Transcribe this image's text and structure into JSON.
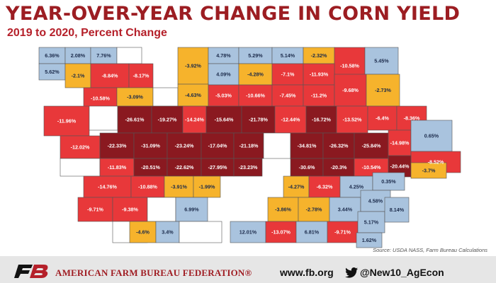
{
  "header": {
    "title": "YEAR-OVER-YEAR CHANGE IN CORN YIELD",
    "subtitle": "2019 to 2020, Percent Change"
  },
  "source": "Source: USDA NASS, Farm Bureau Calculations",
  "footer": {
    "org_name": "AMERICAN FARM BUREAU FEDERATION®",
    "website": "www.fb.org",
    "twitter_handle": "@New10_AgEcon",
    "logo_icon": "fb-logo-icon",
    "twitter_icon": "twitter-bird-icon"
  },
  "legend_colors": {
    "increase": "#a9c3de",
    "decline_0_to_5": "#f6b32c",
    "decline_5_to_15": "#e8383a",
    "decline_over_15": "#8a1920",
    "no_data": "#ffffff"
  },
  "chart_data": {
    "type": "choropleth",
    "unit": "percent change",
    "counties": [
      {
        "label": "6.36%",
        "value": 6.36
      },
      {
        "label": "2.08%",
        "value": 2.08
      },
      {
        "label": "7.76%",
        "value": 7.76
      },
      {
        "label": "",
        "value": null
      },
      {
        "label": "-3.92%",
        "value": -3.92
      },
      {
        "label": "4.78%",
        "value": 4.78
      },
      {
        "label": "5.29%",
        "value": 5.29
      },
      {
        "label": "5.14%",
        "value": 5.14
      },
      {
        "label": "-2.32%",
        "value": -2.32
      },
      {
        "label": "-10.58%",
        "value": -10.58
      },
      {
        "label": "5.45%",
        "value": 5.45
      },
      {
        "label": "5.62%",
        "value": 5.62
      },
      {
        "label": "-2.1%",
        "value": -2.1
      },
      {
        "label": "-8.84%",
        "value": -8.84
      },
      {
        "label": "-8.17%",
        "value": -8.17
      },
      {
        "label": "4.09%",
        "value": 4.09
      },
      {
        "label": "-4.28%",
        "value": -4.28
      },
      {
        "label": "-7.1%",
        "value": -7.1
      },
      {
        "label": "-11.93%",
        "value": -11.93
      },
      {
        "label": "-10.58%",
        "value": -10.58
      },
      {
        "label": "-3.09%",
        "value": -3.09
      },
      {
        "label": "",
        "value": null
      },
      {
        "label": "-4.63%",
        "value": -4.63
      },
      {
        "label": "-5.03%",
        "value": -5.03
      },
      {
        "label": "-10.66%",
        "value": -10.66
      },
      {
        "label": "-7.45%",
        "value": -7.45
      },
      {
        "label": "-11.2%",
        "value": -11.2
      },
      {
        "label": "-9.68%",
        "value": -9.68
      },
      {
        "label": "-2.73%",
        "value": -2.73
      },
      {
        "label": "-11.96%",
        "value": -11.96
      },
      {
        "label": "",
        "value": null
      },
      {
        "label": "-26.61%",
        "value": -26.61
      },
      {
        "label": "-19.27%",
        "value": -19.27
      },
      {
        "label": "-14.24%",
        "value": -14.24
      },
      {
        "label": "-15.64%",
        "value": -15.64
      },
      {
        "label": "-21.78%",
        "value": -21.78
      },
      {
        "label": "-12.44%",
        "value": -12.44
      },
      {
        "label": "-16.72%",
        "value": -16.72
      },
      {
        "label": "-13.52%",
        "value": -13.52
      },
      {
        "label": "-6.4%",
        "value": -6.4
      },
      {
        "label": "-8.36%",
        "value": -8.36
      },
      {
        "label": "-12.02%",
        "value": -12.02
      },
      {
        "label": "-22.33%",
        "value": -22.33
      },
      {
        "label": "-31.09%",
        "value": -31.09
      },
      {
        "label": "-23.24%",
        "value": -23.24
      },
      {
        "label": "-17.04%",
        "value": -17.04
      },
      {
        "label": "-21.18%",
        "value": -21.18
      },
      {
        "label": "",
        "value": null
      },
      {
        "label": "-34.81%",
        "value": -34.81
      },
      {
        "label": "-26.32%",
        "value": -26.32
      },
      {
        "label": "-25.84%",
        "value": -25.84
      },
      {
        "label": "-14.98%",
        "value": -14.98
      },
      {
        "label": "0.65%",
        "value": 0.65
      },
      {
        "label": "-8.52%",
        "value": -8.52
      },
      {
        "label": "",
        "value": null
      },
      {
        "label": "-11.83%",
        "value": -11.83
      },
      {
        "label": "-20.51%",
        "value": -20.51
      },
      {
        "label": "-22.62%",
        "value": -22.62
      },
      {
        "label": "-27.95%",
        "value": -27.95
      },
      {
        "label": "-23.23%",
        "value": -23.23
      },
      {
        "label": "-30.6%",
        "value": -30.6
      },
      {
        "label": "-20.3%",
        "value": -20.3
      },
      {
        "label": "-10.54%",
        "value": -10.54
      },
      {
        "label": "-20.44%",
        "value": -20.44
      },
      {
        "label": "-3.7%",
        "value": -3.7
      },
      {
        "label": "-14.76%",
        "value": -14.76
      },
      {
        "label": "-10.88%",
        "value": -10.88
      },
      {
        "label": "-3.91%",
        "value": -3.91
      },
      {
        "label": "-1.99%",
        "value": -1.99
      },
      {
        "label": "-4.27%",
        "value": -4.27
      },
      {
        "label": "-6.32%",
        "value": -6.32
      },
      {
        "label": "4.25%",
        "value": 4.25
      },
      {
        "label": "0.35%",
        "value": 0.35
      },
      {
        "label": "-9.71%",
        "value": -9.71
      },
      {
        "label": "-9.38%",
        "value": -9.38
      },
      {
        "label": "",
        "value": null
      },
      {
        "label": "6.99%",
        "value": 6.99
      },
      {
        "label": "-3.86%",
        "value": -3.86
      },
      {
        "label": "-2.78%",
        "value": -2.78
      },
      {
        "label": "3.44%",
        "value": 3.44
      },
      {
        "label": "4.58%",
        "value": 4.58
      },
      {
        "label": "",
        "value": null
      },
      {
        "label": "-4.6%",
        "value": -4.6
      },
      {
        "label": "3.4%",
        "value": 3.4
      },
      {
        "label": "",
        "value": null
      },
      {
        "label": "12.01%",
        "value": 12.01
      },
      {
        "label": "-13.07%",
        "value": -13.07
      },
      {
        "label": "6.81%",
        "value": 6.81
      },
      {
        "label": "-9.71%",
        "value": -9.71
      },
      {
        "label": "5.17%",
        "value": 5.17
      },
      {
        "label": "8.14%",
        "value": 8.14
      },
      {
        "label": "1.62%",
        "value": 1.62
      }
    ]
  }
}
